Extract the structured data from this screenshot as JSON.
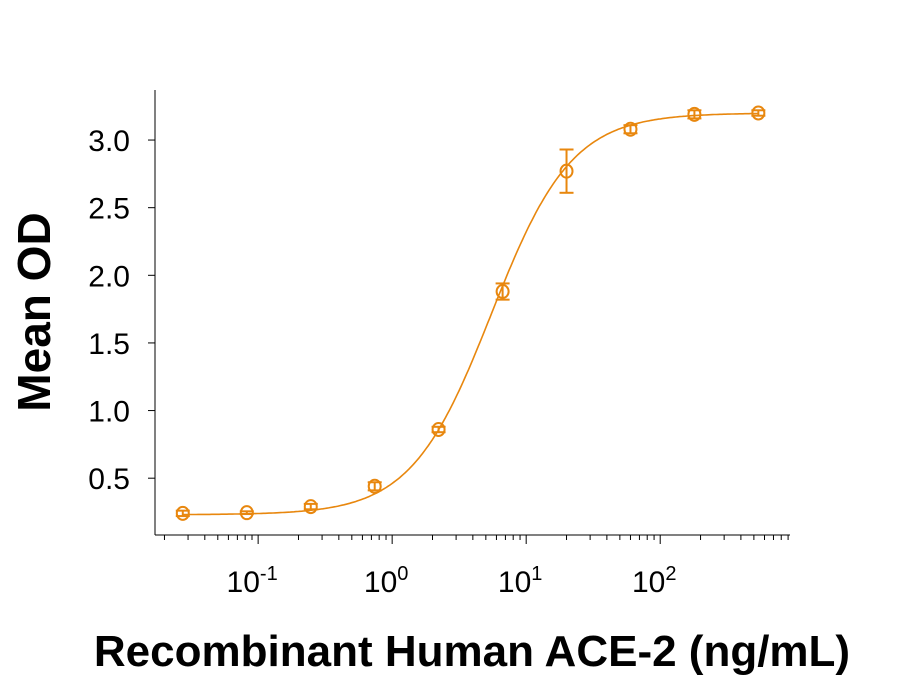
{
  "chart_data": {
    "type": "scatter",
    "title": "",
    "xlabel": "Recombinant Human ACE-2 (ng/mL)",
    "ylabel": "Mean OD",
    "xscale": "log",
    "xlim": [
      0.017,
      930
    ],
    "ylim": [
      0.08,
      3.37
    ],
    "yticks": [
      0.5,
      1.0,
      1.5,
      2.0,
      2.5,
      3.0
    ],
    "ytick_labels": [
      "0.5",
      "1.0",
      "1.5",
      "2.0",
      "2.5",
      "3.0"
    ],
    "xticks": [
      0.1,
      1,
      10,
      100
    ],
    "xtick_labels": [
      {
        "base": "10",
        "exp": "-1"
      },
      {
        "base": "10",
        "exp": "0"
      },
      {
        "base": "10",
        "exp": "1"
      },
      {
        "base": "10",
        "exp": "2"
      }
    ],
    "grid": false,
    "legend": "none",
    "color": "#E8870E",
    "series": [
      {
        "x": [
          0.0274,
          0.0823,
          0.247,
          0.741,
          2.22,
          6.67,
          20,
          60,
          180,
          540
        ],
        "y": [
          0.24,
          0.245,
          0.29,
          0.44,
          0.86,
          1.88,
          2.77,
          3.08,
          3.19,
          3.2
        ],
        "error": [
          0.02,
          0.01,
          0.02,
          0.03,
          0.02,
          0.06,
          0.16,
          0.03,
          0.03,
          0.02
        ],
        "fit": "4PL curve"
      }
    ]
  }
}
